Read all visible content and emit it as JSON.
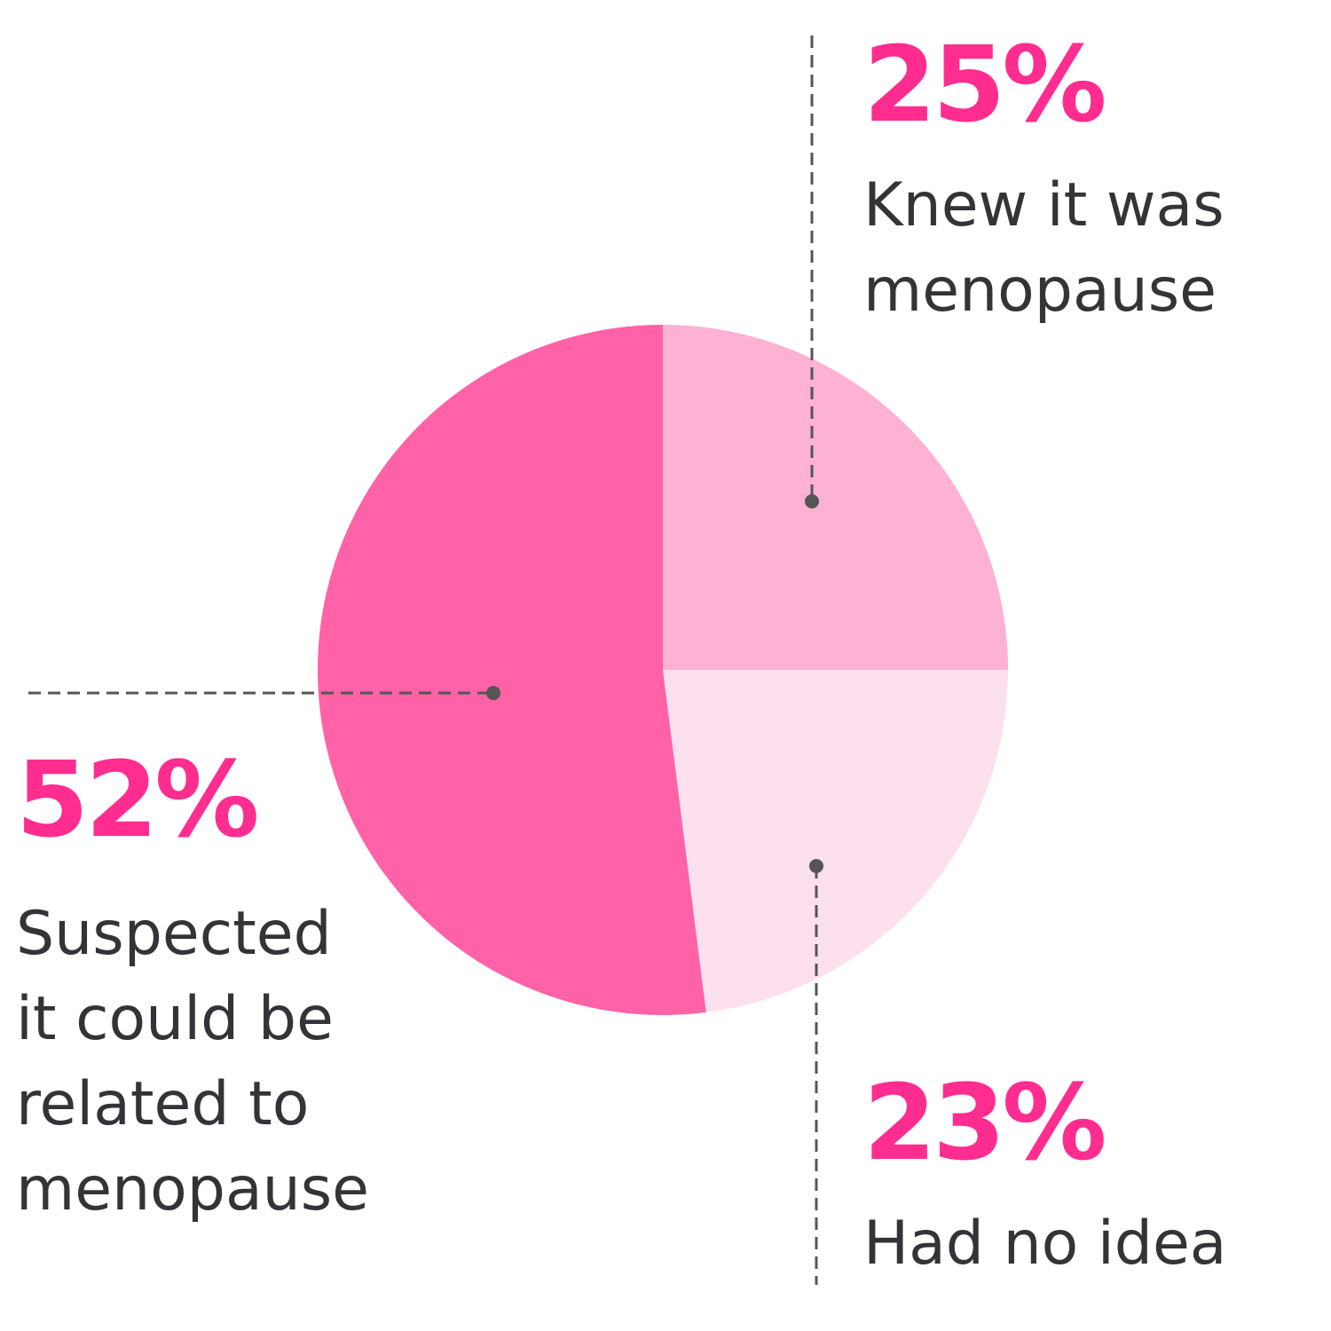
{
  "chart_data": {
    "type": "pie",
    "slices": [
      {
        "value": 25,
        "value_label": "25%",
        "label_lines": [
          "Knew it was",
          "menopause"
        ],
        "color": "#fdb1d3"
      },
      {
        "value": 23,
        "value_label": "23%",
        "label_lines": [
          "Had no idea"
        ],
        "color": "#fde0ee"
      },
      {
        "value": 52,
        "value_label": "52%",
        "label_lines": [
          "Suspected",
          "it could be",
          "related to",
          "menopause"
        ],
        "color": "#ff62a6"
      }
    ],
    "start_angle_deg": 0,
    "direction": "clockwise",
    "percent_color": "#ff2d8f",
    "label_text_color": "#333338",
    "leader_line_color": "#555555"
  }
}
